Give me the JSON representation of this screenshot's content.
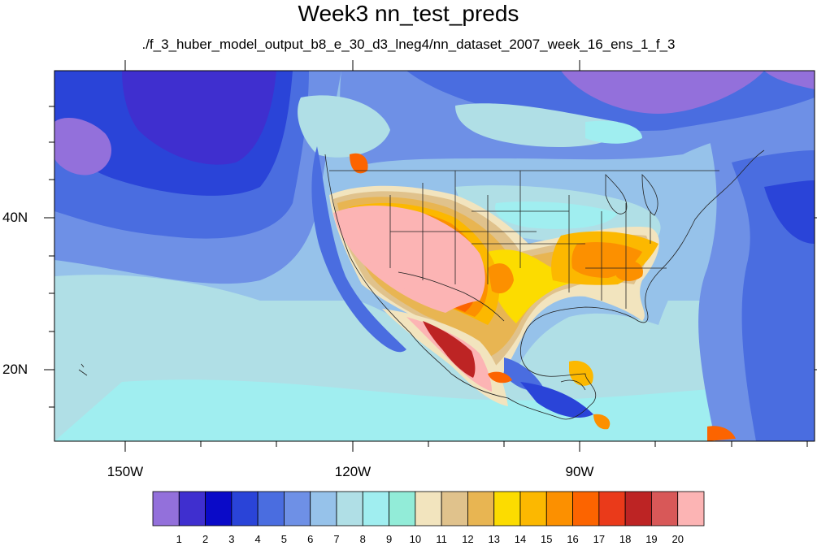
{
  "title": "Week3 nn_test_preds",
  "subtitle": "./f_3_huber_model_output_b8_e_30_d3_lneg4/nn_dataset_2007_week_16_ens_1_f_3",
  "axes": {
    "lon_labels": [
      "150W",
      "120W",
      "90W"
    ],
    "lat_labels": [
      "40N",
      "20N"
    ]
  },
  "colorbar": {
    "labels": [
      "1",
      "2",
      "3",
      "4",
      "5",
      "6",
      "7",
      "8",
      "9",
      "10",
      "11",
      "12",
      "13",
      "14",
      "15",
      "16",
      "17",
      "18",
      "19",
      "20"
    ],
    "colors": [
      "#9370db",
      "#3f2fcf",
      "#0a0ac8",
      "#2a44d8",
      "#4a6de0",
      "#6e90e6",
      "#96c2ea",
      "#b0dfe6",
      "#a0eef0",
      "#92ecd8",
      "#f2e4be",
      "#e0c28c",
      "#e8b552",
      "#fcdc00",
      "#fcb800",
      "#fc9000",
      "#fc6400",
      "#ea3a1a",
      "#bd2424",
      "#d85858",
      "#fcb4b4"
    ]
  }
}
